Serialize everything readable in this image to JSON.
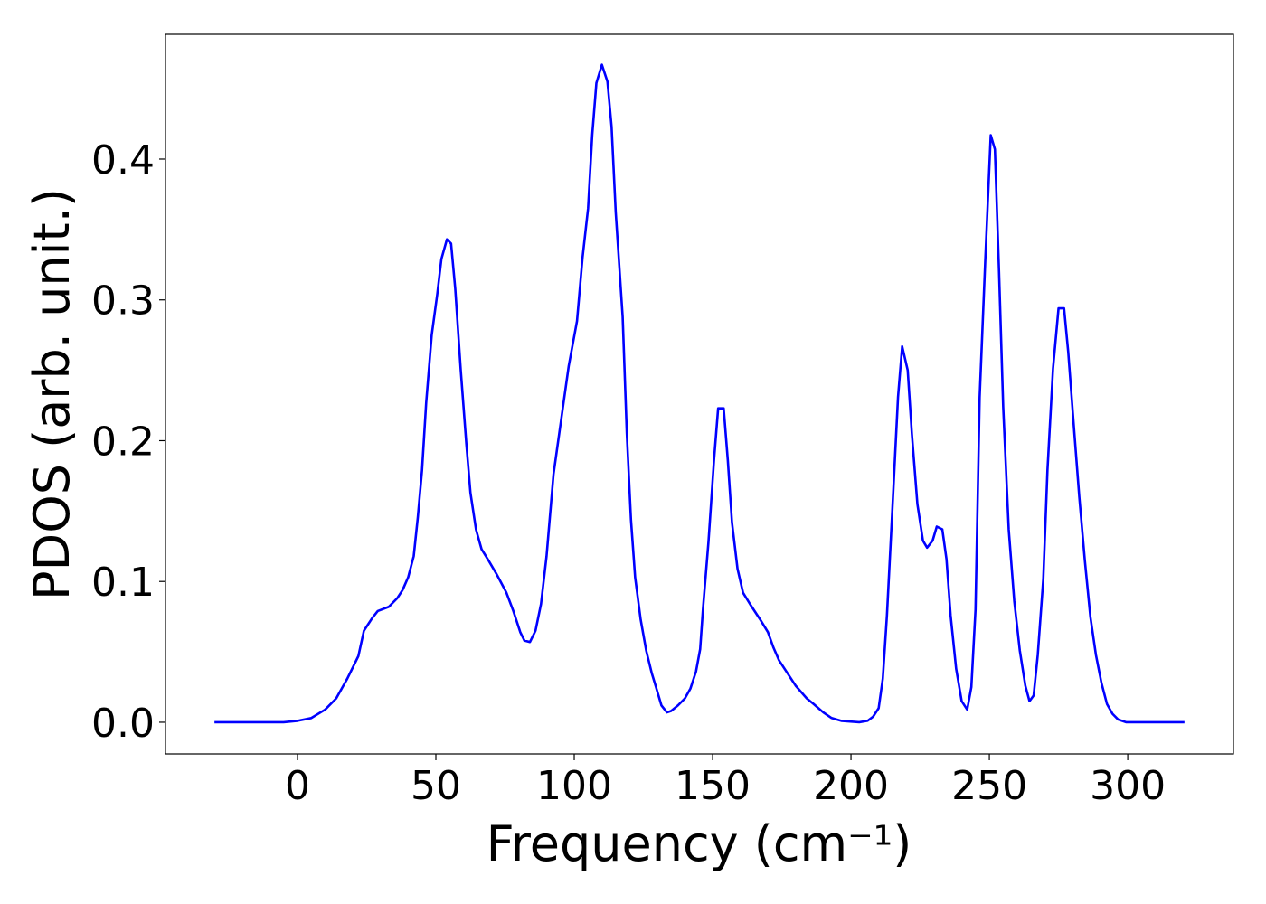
{
  "chart_data": {
    "type": "line",
    "xlabel": "Frequency (cm⁻¹)",
    "ylabel": "PDOS (arb. unit.)",
    "xlim": [
      -47.7,
      338.2
    ],
    "ylim": [
      -0.0225,
      0.4886
    ],
    "xticks": [
      0,
      50,
      100,
      150,
      200,
      250,
      300
    ],
    "yticks": [
      {
        "value": 0,
        "label": "0.0"
      },
      0.1,
      0.2,
      0.3,
      0.4
    ],
    "grid": false,
    "x": [
      -30,
      -5,
      0,
      5,
      10,
      14,
      18,
      22,
      24,
      27,
      29,
      33,
      36,
      38,
      40,
      42,
      43.5,
      45,
      46.5,
      48.5,
      50.5,
      52,
      54,
      55.5,
      57,
      59,
      61,
      62.5,
      64.5,
      66.5,
      69,
      72,
      75.5,
      78,
      80.5,
      82,
      84,
      86,
      88,
      90,
      92.5,
      95,
      98,
      101,
      103,
      105,
      106.5,
      108,
      110,
      112,
      113.5,
      115,
      117.5,
      119,
      120.5,
      122,
      124,
      126,
      128,
      130,
      131.5,
      133.5,
      135,
      137.5,
      140,
      142,
      144,
      145.5,
      146.5,
      148.5,
      150.5,
      152,
      154,
      155.5,
      157,
      159,
      161,
      163.5,
      165.5,
      167.5,
      170,
      172,
      174,
      177,
      180,
      184,
      186.5,
      190,
      193,
      196.5,
      203,
      206,
      208,
      210,
      211.5,
      213,
      215,
      217,
      218.5,
      220.5,
      222,
      224,
      226,
      227.5,
      229.5,
      231,
      233,
      234.5,
      236,
      238,
      240,
      242,
      243.5,
      245,
      246.5,
      248.5,
      250.5,
      252,
      253.5,
      255,
      257,
      259,
      261,
      263,
      264.5,
      266,
      267.5,
      269.5,
      271,
      273,
      275,
      277,
      278.5,
      280.5,
      282.5,
      284.5,
      286.5,
      288.5,
      290.5,
      292.5,
      294.5,
      296.5,
      299.5,
      320.5
    ],
    "series": [
      {
        "name": "PDOS",
        "color": "#0000ff",
        "values": [
          0,
          0,
          0.001,
          0.003,
          0.009,
          0.017,
          0.031,
          0.047,
          0.065,
          0.074,
          0.079,
          0.082,
          0.088,
          0.094,
          0.103,
          0.118,
          0.146,
          0.179,
          0.227,
          0.275,
          0.304,
          0.329,
          0.343,
          0.34,
          0.308,
          0.25,
          0.198,
          0.163,
          0.137,
          0.123,
          0.115,
          0.105,
          0.092,
          0.079,
          0.064,
          0.058,
          0.057,
          0.065,
          0.084,
          0.118,
          0.176,
          0.211,
          0.253,
          0.285,
          0.33,
          0.365,
          0.417,
          0.454,
          0.467,
          0.455,
          0.423,
          0.362,
          0.288,
          0.205,
          0.144,
          0.103,
          0.073,
          0.051,
          0.035,
          0.022,
          0.012,
          0.007,
          0.008,
          0.012,
          0.017,
          0.024,
          0.036,
          0.052,
          0.08,
          0.128,
          0.186,
          0.223,
          0.223,
          0.186,
          0.142,
          0.109,
          0.092,
          0.084,
          0.078,
          0.072,
          0.064,
          0.053,
          0.044,
          0.035,
          0.026,
          0.017,
          0.013,
          0.007,
          0.003,
          0.001,
          0,
          0.001,
          0.004,
          0.01,
          0.031,
          0.076,
          0.153,
          0.231,
          0.267,
          0.25,
          0.205,
          0.155,
          0.129,
          0.124,
          0.129,
          0.139,
          0.137,
          0.116,
          0.076,
          0.038,
          0.015,
          0.009,
          0.025,
          0.08,
          0.231,
          0.327,
          0.417,
          0.407,
          0.32,
          0.224,
          0.137,
          0.086,
          0.051,
          0.026,
          0.015,
          0.019,
          0.048,
          0.102,
          0.179,
          0.251,
          0.294,
          0.294,
          0.263,
          0.211,
          0.16,
          0.115,
          0.075,
          0.048,
          0.028,
          0.013,
          0.006,
          0.002,
          0,
          0
        ]
      }
    ]
  }
}
